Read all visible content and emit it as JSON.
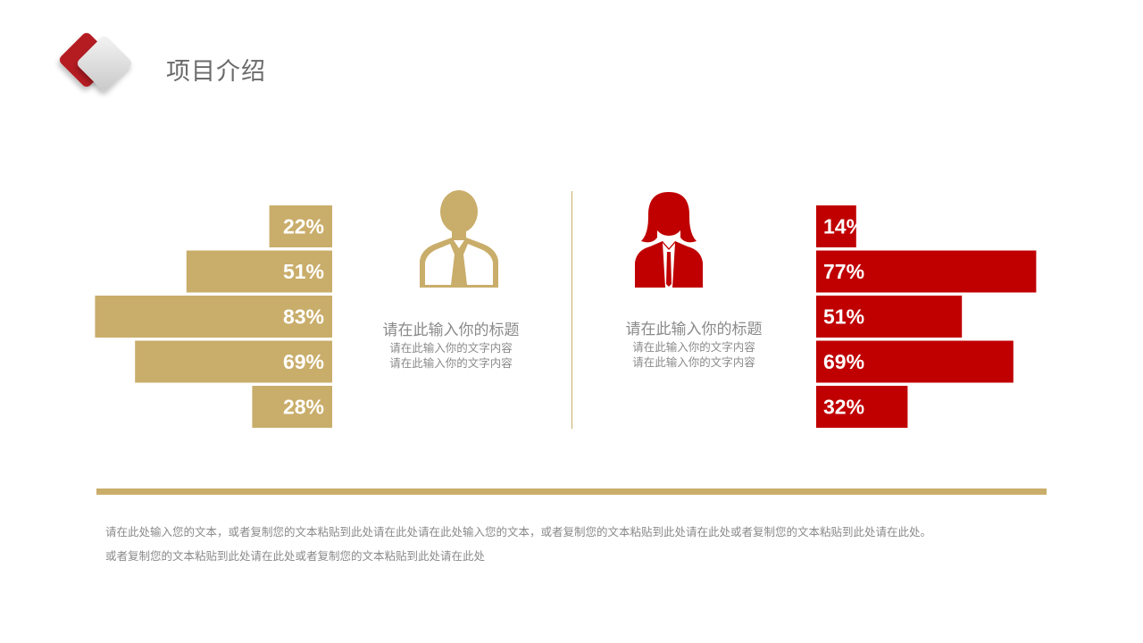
{
  "header": {
    "title": "项目介绍",
    "logo_icon": "diamond-logo-icon"
  },
  "colors": {
    "gold": "#c9ad6a",
    "red": "#c00000",
    "text_gray": "#8a8a8a"
  },
  "left_person": {
    "icon": "man-with-tie-icon",
    "title": "请在此输入你的标题",
    "desc_line1": "请在此输入你的文字内容",
    "desc_line2": "请在此输入你的文字内容"
  },
  "right_person": {
    "icon": "woman-icon",
    "title": "请在此输入你的标题",
    "desc_line1": "请在此输入你的文字内容",
    "desc_line2": "请在此输入你的文字内容"
  },
  "chart_data": [
    {
      "type": "bar",
      "orientation": "horizontal",
      "direction": "right-to-left",
      "color": "#c9ad6a",
      "values": [
        22,
        51,
        83,
        69,
        28
      ],
      "labels": [
        "22%",
        "51%",
        "83%",
        "69%",
        "28%"
      ]
    },
    {
      "type": "bar",
      "orientation": "horizontal",
      "direction": "left-to-right",
      "color": "#c00000",
      "values": [
        14,
        77,
        51,
        69,
        32
      ],
      "labels": [
        "14%",
        "77%",
        "51%",
        "69%",
        "32%"
      ]
    }
  ],
  "footer": {
    "line1": "请在此处输入您的文本，或者复制您的文本粘贴到此处请在此处请在此处输入您的文本，或者复制您的文本粘贴到此处请在此处或者复制您的文本粘贴到此处请在此处。",
    "line2": "或者复制您的文本粘贴到此处请在此处或者复制您的文本粘贴到此处请在此处"
  }
}
